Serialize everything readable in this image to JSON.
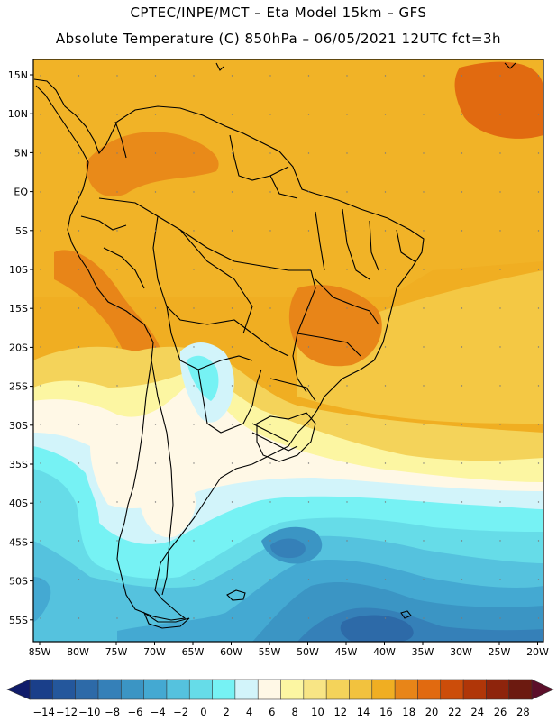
{
  "title_line1": "CPTEC/INPE/MCT –  Eta Model 15km – GFS",
  "title_line2": "Absolute Temperature (C) 850hPa – 06/05/2021 12UTC fct=3h",
  "lat_labels": [
    "15N",
    "10N",
    "5N",
    "EQ",
    "5S",
    "10S",
    "15S",
    "20S",
    "25S",
    "30S",
    "35S",
    "40S",
    "45S",
    "50S",
    "55S"
  ],
  "lon_labels": [
    "85W",
    "80W",
    "75W",
    "70W",
    "65W",
    "60W",
    "55W",
    "50W",
    "45W",
    "40W",
    "35W",
    "30W",
    "25W",
    "20W"
  ],
  "colorbar": {
    "labels": [
      "-14",
      "-12",
      "-10",
      "-8",
      "-6",
      "-4",
      "-2",
      "0",
      "2",
      "4",
      "6",
      "8",
      "10",
      "12",
      "14",
      "16",
      "18",
      "20",
      "22",
      "24",
      "26",
      "28"
    ],
    "colors": [
      "#1a3f8a",
      "#24579c",
      "#2d6aa8",
      "#3580b8",
      "#3b95c4",
      "#44a9d2",
      "#55c2de",
      "#66dce8",
      "#76f2f4",
      "#d2f4fa",
      "#fff8e6",
      "#fcf6a2",
      "#f8e585",
      "#f4d35a",
      "#f2c23e",
      "#f0ae22",
      "#e88518",
      "#e16a10",
      "#cc4d0a",
      "#b03608",
      "#8e240c",
      "#6c1a10"
    ]
  }
}
